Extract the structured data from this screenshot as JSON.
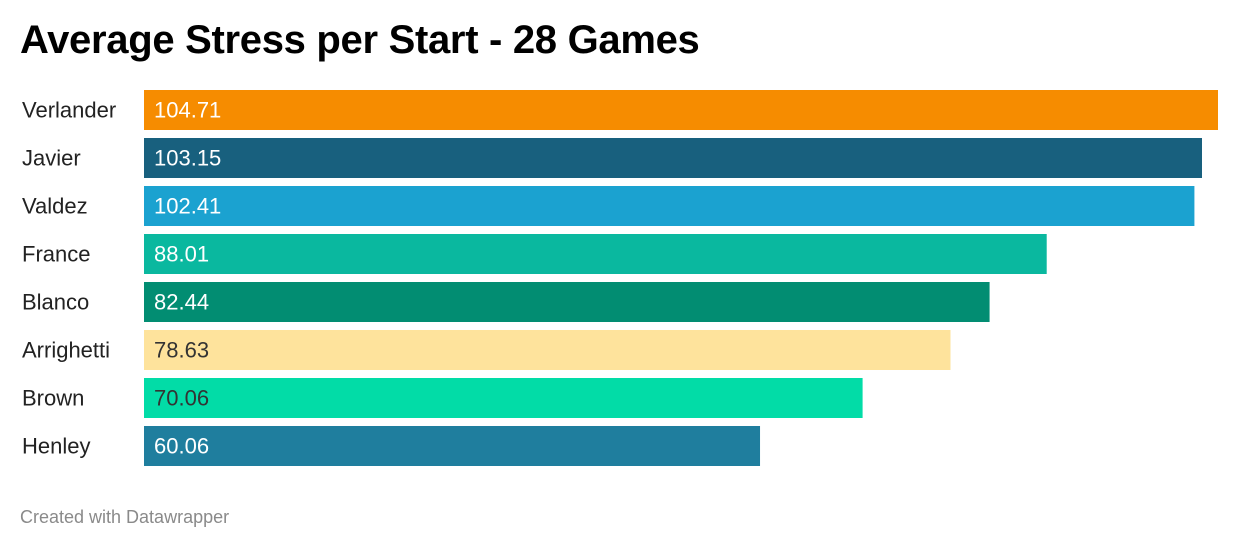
{
  "chart_data": {
    "type": "bar",
    "orientation": "horizontal",
    "title": "Average Stress per Start - 28 Games",
    "xlabel": "",
    "ylabel": "",
    "grid": false,
    "xlim": [
      0,
      104.71
    ],
    "categories": [
      "Verlander",
      "Javier",
      "Valdez",
      "France",
      "Blanco",
      "Arrighetti",
      "Brown",
      "Henley"
    ],
    "values": [
      104.71,
      103.15,
      102.41,
      88.01,
      82.44,
      78.63,
      70.06,
      60.06
    ],
    "value_labels": [
      "104.71",
      "103.15",
      "102.41",
      "88.01",
      "82.44",
      "78.63",
      "70.06",
      "60.06"
    ],
    "bar_colors": [
      "#f68c00",
      "#18607e",
      "#1ba2d0",
      "#0ab89f",
      "#028d72",
      "#fee39c",
      "#02dca7",
      "#1f7e9e"
    ],
    "value_label_colors": [
      "#ffffff",
      "#ffffff",
      "#ffffff",
      "#ffffff",
      "#ffffff",
      "#333333",
      "#333333",
      "#ffffff"
    ]
  },
  "footer": {
    "credit": "Created with Datawrapper"
  }
}
